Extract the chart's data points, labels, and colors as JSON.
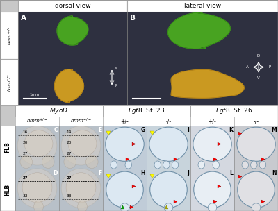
{
  "top_header_left": "dorsal view",
  "top_header_right": "lateral view",
  "left_labels_top": [
    "hmm+/-",
    "hmm-/-"
  ],
  "panel_letters_top": [
    "A",
    "B"
  ],
  "bottom_main_headers": [
    "MyoD",
    "Fgf8  St. 23",
    "Fgf8  St. 26"
  ],
  "bottom_sub_headers": [
    "hmm+/-",
    "hmm-/-",
    "+/-",
    "-/-",
    "+/-",
    "-/-"
  ],
  "bottom_row_labels": [
    "FLB",
    "HLB"
  ],
  "panel_letters_bottom": [
    [
      "C",
      "E",
      "G",
      "I",
      "K",
      "M"
    ],
    [
      "D",
      "F",
      "H",
      "J",
      "L",
      "N"
    ]
  ],
  "dark_bg": "#2e3040",
  "green_color": "#4aaa20",
  "gold_color": "#d4a020",
  "border_color": "#aaaaaa",
  "header_bg": "#ffffff",
  "myod_nums_C": [
    "16",
    "20"
  ],
  "myod_nums_E": [
    "14",
    "20"
  ],
  "myod_nums_D": [
    "27",
    "33"
  ],
  "myod_nums_F": [
    "27",
    "33"
  ],
  "myod_27_C": "27",
  "myod_27_E": "27"
}
